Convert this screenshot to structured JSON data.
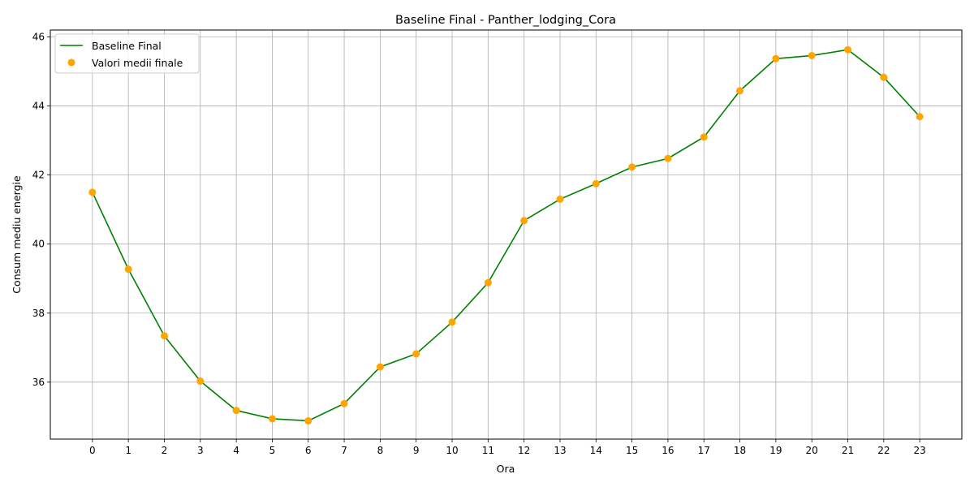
{
  "chart_data": {
    "type": "line",
    "title": "Baseline Final - Panther_lodging_Cora",
    "xlabel": "Ora",
    "ylabel": "Consum mediu energie",
    "x": [
      0,
      1,
      2,
      3,
      4,
      5,
      6,
      7,
      8,
      9,
      10,
      11,
      12,
      13,
      14,
      15,
      16,
      17,
      18,
      19,
      20,
      21,
      22,
      23
    ],
    "x_ticks": [
      "0",
      "1",
      "2",
      "3",
      "4",
      "5",
      "6",
      "7",
      "8",
      "9",
      "10",
      "11",
      "12",
      "13",
      "14",
      "15",
      "16",
      "17",
      "18",
      "19",
      "20",
      "21",
      "22",
      "23"
    ],
    "y_ticks": [
      36,
      38,
      40,
      42,
      44,
      46
    ],
    "xlim": [
      -1.17,
      24.17
    ],
    "ylim": [
      34.35,
      46.2
    ],
    "grid": true,
    "legend_position": "top-left",
    "series": [
      {
        "name": "Baseline Final",
        "kind": "line",
        "color": "#008000",
        "values": [
          41.5,
          39.27,
          37.34,
          36.03,
          35.18,
          34.94,
          34.88,
          35.38,
          36.44,
          36.82,
          37.74,
          38.88,
          40.68,
          41.3,
          41.75,
          42.23,
          42.48,
          43.1,
          44.44,
          45.37,
          45.46,
          45.63,
          44.83,
          43.69
        ]
      },
      {
        "name": "Valori medii finale",
        "kind": "scatter",
        "color": "#FFA500",
        "values": [
          41.5,
          39.27,
          37.34,
          36.03,
          35.18,
          34.94,
          34.88,
          35.38,
          36.44,
          36.82,
          37.74,
          38.88,
          40.68,
          41.3,
          41.75,
          42.23,
          42.48,
          43.1,
          44.44,
          45.37,
          45.46,
          45.63,
          44.83,
          43.69
        ]
      }
    ]
  }
}
